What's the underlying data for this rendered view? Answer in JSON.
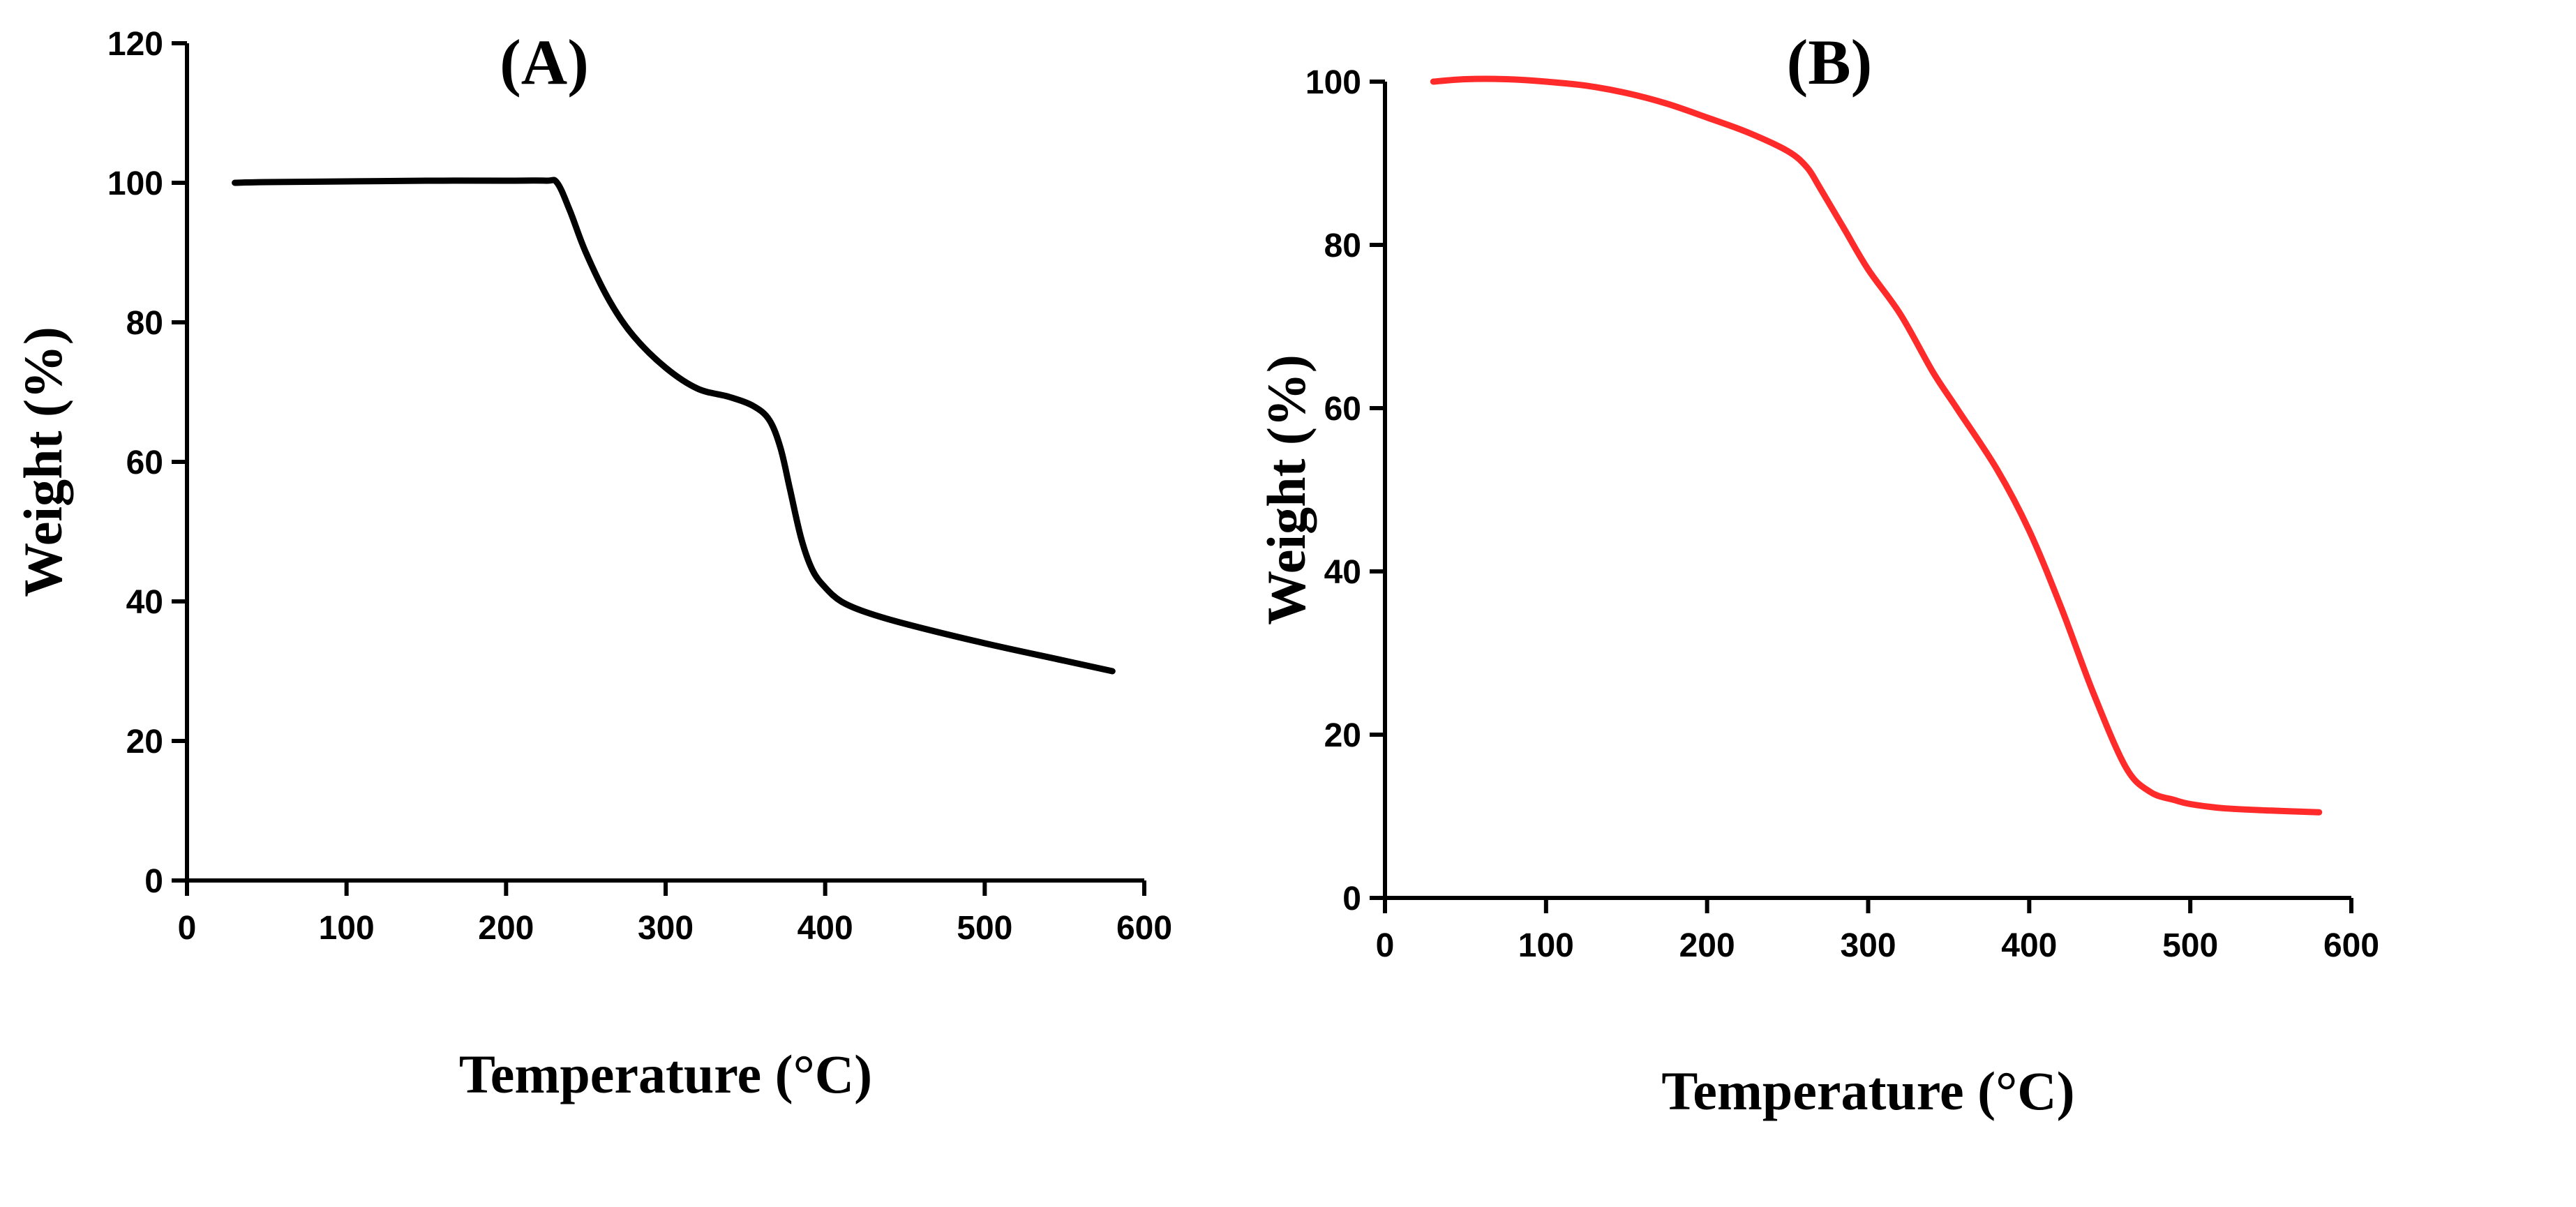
{
  "chart_data": [
    {
      "type": "line",
      "title": "(A)",
      "xlabel": "Temperature (°C)",
      "ylabel": "Weight (%)",
      "xlim": [
        0,
        600
      ],
      "ylim": [
        0,
        120
      ],
      "xticks": [
        0,
        100,
        200,
        300,
        400,
        500,
        600
      ],
      "yticks": [
        0,
        20,
        40,
        60,
        80,
        100,
        120
      ],
      "grid": false,
      "series": [
        {
          "name": "A",
          "color": "#000000",
          "x": [
            30,
            50,
            100,
            150,
            200,
            225,
            232,
            240,
            250,
            265,
            280,
            300,
            320,
            340,
            355,
            365,
            372,
            378,
            385,
            392,
            400,
            410,
            425,
            450,
            500,
            550,
            580
          ],
          "y": [
            100,
            100.1,
            100.2,
            100.3,
            100.3,
            100.3,
            100,
            96,
            90,
            83,
            78,
            73.5,
            70.5,
            69.3,
            68,
            66,
            62,
            56,
            49,
            44.5,
            42,
            40,
            38.5,
            36.8,
            34,
            31.5,
            30
          ]
        }
      ]
    },
    {
      "type": "line",
      "title": "(B)",
      "xlabel": "Temperature (°C)",
      "ylabel": "Weight (%)",
      "xlim": [
        0,
        600
      ],
      "ylim": [
        0,
        100
      ],
      "xticks": [
        0,
        100,
        200,
        300,
        400,
        500,
        600
      ],
      "yticks": [
        0,
        20,
        40,
        60,
        80,
        100
      ],
      "grid": false,
      "series": [
        {
          "name": "B",
          "color": "#ff2a2a",
          "x": [
            30,
            50,
            75,
            100,
            125,
            150,
            175,
            200,
            225,
            250,
            262,
            270,
            285,
            300,
            320,
            340,
            355,
            380,
            400,
            420,
            440,
            460,
            475,
            490,
            500,
            520,
            550,
            580
          ],
          "y": [
            100,
            100.3,
            100.3,
            100,
            99.5,
            98.6,
            97.3,
            95.6,
            93.8,
            91.5,
            89.5,
            87,
            82,
            77,
            71.5,
            64.5,
            60,
            52.5,
            45,
            35.5,
            25,
            16,
            13,
            12,
            11.5,
            11,
            10.7,
            10.5
          ]
        }
      ]
    }
  ]
}
